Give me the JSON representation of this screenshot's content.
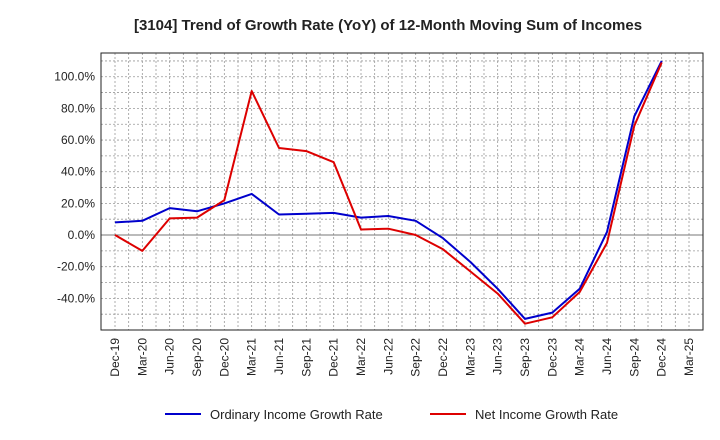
{
  "chart_data": {
    "type": "line",
    "title": "[3104]  Trend of Growth Rate (YoY) of 12-Month Moving Sum of Incomes",
    "xlabel": "",
    "ylabel": "",
    "x": [
      "Dec-19",
      "Mar-20",
      "Jun-20",
      "Sep-20",
      "Dec-20",
      "Mar-21",
      "Jun-21",
      "Sep-21",
      "Dec-21",
      "Mar-22",
      "Jun-22",
      "Sep-22",
      "Dec-22",
      "Mar-23",
      "Jun-23",
      "Sep-23",
      "Dec-23",
      "Mar-24",
      "Jun-24",
      "Sep-24",
      "Dec-24",
      "Mar-25"
    ],
    "ylim": [
      -60,
      115
    ],
    "yticks": [
      -40,
      -20,
      0,
      20,
      40,
      60,
      80,
      100
    ],
    "ytick_labels": [
      "-40.0%",
      "-20.0%",
      "0.0%",
      "20.0%",
      "40.0%",
      "60.0%",
      "80.0%",
      "100.0%"
    ],
    "grid": true,
    "legend_position": "bottom",
    "series": [
      {
        "name": "Ordinary Income Growth Rate",
        "color": "#0000cc",
        "values": [
          8.0,
          9.0,
          17.0,
          15.0,
          20.0,
          26.0,
          13.0,
          13.5,
          14.0,
          11.0,
          12.0,
          9.0,
          -2.0,
          -17.0,
          -34.0,
          -53.0,
          -49.0,
          -34.0,
          2.0,
          75.0,
          110.0,
          null
        ]
      },
      {
        "name": "Net Income Growth Rate",
        "color": "#dd0000",
        "values": [
          0.0,
          -10.0,
          10.5,
          11.0,
          22.0,
          91.0,
          55.0,
          53.0,
          46.0,
          3.5,
          4.0,
          0.0,
          -9.0,
          -23.0,
          -37.0,
          -56.0,
          -52.0,
          -36.0,
          -5.0,
          69.0,
          109.0,
          null
        ]
      }
    ]
  }
}
